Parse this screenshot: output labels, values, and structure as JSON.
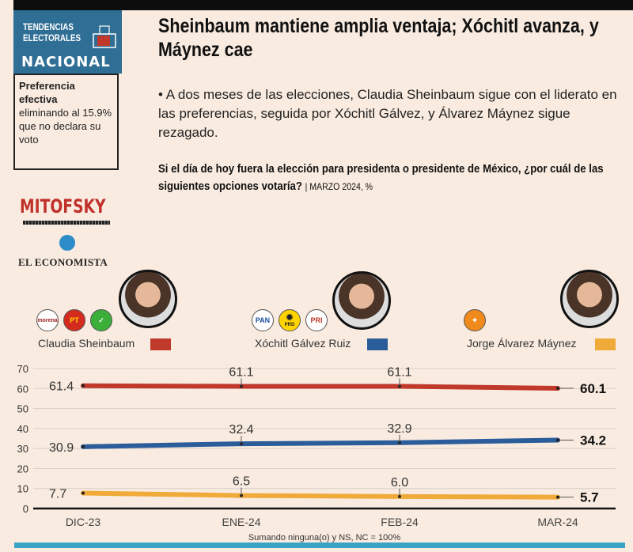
{
  "header": {
    "brand_line1": "TENDENCIAS",
    "brand_line2": "ELECTORALES",
    "brand_line3": "NACIONAL"
  },
  "sidebar": {
    "pref_bold1": "Preferencia",
    "pref_bold2": "efectiva",
    "pref_text": "eliminando al 15.9% que no declara su voto",
    "logo1": "MITOFSKY",
    "logo2": "EL ECONOMISTA"
  },
  "headline": "Sheinbaum mantiene amplia ventaja; Xóchitl avanza, y Máynez cae",
  "bullet": "• A dos meses de las elecciones, Claudia Sheinbaum sigue con el liderato en las preferencias, seguida por Xóchitl Gálvez, y Álvarez Máynez sigue rezagado.",
  "question": "Si el día de hoy fuera la elección para presidenta o presidente de México, ¿por cuál de las siguientes opciones votaría?",
  "question_meta": "| MARZO 2024, %",
  "parties": {
    "morena": "morena",
    "pt": "PT",
    "pan": "PAN",
    "prd": "PRD"
  },
  "chart_data": {
    "type": "line",
    "categories": [
      "DIC-23",
      "ENE-24",
      "FEB-24",
      "MAR-24"
    ],
    "series": [
      {
        "name": "Claudia Sheinbaum",
        "color": "#c0392b",
        "values": [
          61.4,
          61.1,
          61.1,
          60.1
        ],
        "labels": [
          "61.4",
          "61.1",
          "61.1",
          "60.1"
        ]
      },
      {
        "name": "Xóchitl Gálvez Ruiz",
        "color": "#2a5d9a",
        "values": [
          30.9,
          32.4,
          32.9,
          34.2
        ],
        "labels": [
          "30.9",
          "32.4",
          "32.9",
          "34.2"
        ]
      },
      {
        "name": "Jorge Álvarez Máynez",
        "color": "#f0aa3a",
        "values": [
          7.7,
          6.5,
          6.0,
          5.7
        ],
        "labels": [
          "7.7",
          "6.5",
          "6.0",
          "5.7"
        ]
      }
    ],
    "yticks": [
      "0",
      "10",
      "20",
      "30",
      "40",
      "50",
      "60",
      "70"
    ],
    "ylim": [
      0,
      70
    ],
    "note": "Sumando ninguna(o) y NS, NC = 100%",
    "grid": true
  }
}
